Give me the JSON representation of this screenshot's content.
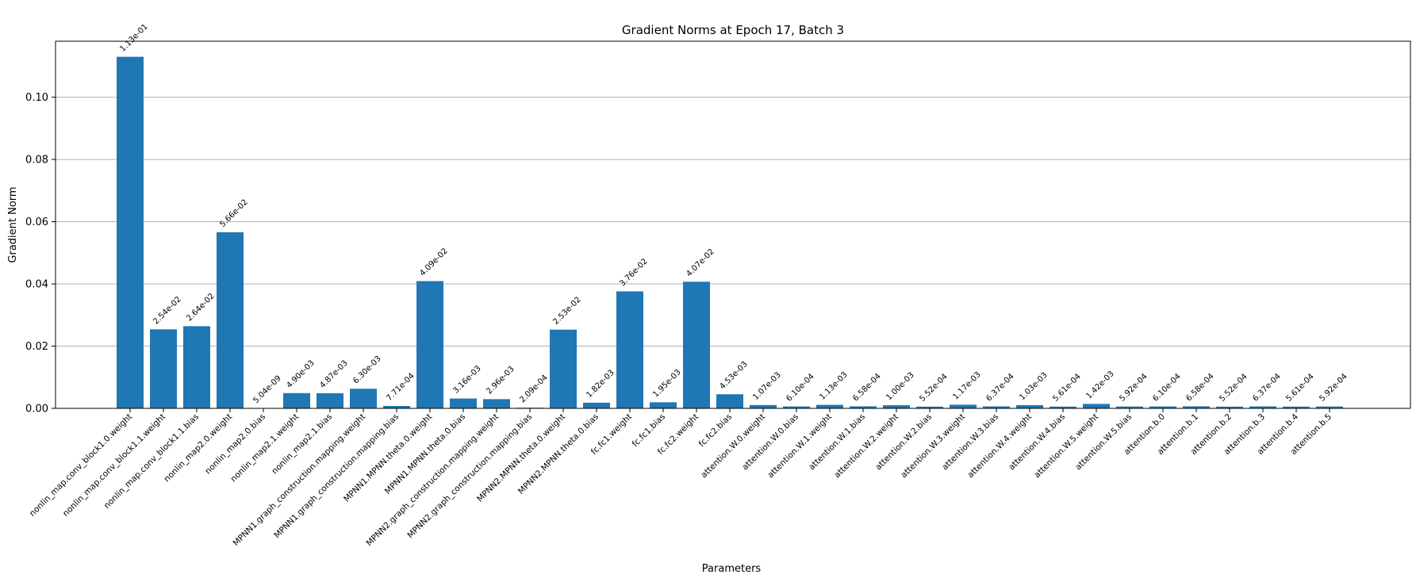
{
  "chart_data": {
    "type": "bar",
    "title": "Gradient Norms at Epoch 17, Batch 3",
    "xlabel": "Parameters",
    "ylabel": "Gradient Norm",
    "ylim": [
      0,
      0.118
    ],
    "yticks": [
      "0.00",
      "0.02",
      "0.04",
      "0.06",
      "0.08",
      "0.10"
    ],
    "grid": "y",
    "color": "#1f77b4",
    "categories": [
      "nonlin_map.conv_block1.0.weight",
      "nonlin_map.conv_block1.1.weight",
      "nonlin_map.conv_block1.1.bias",
      "nonlin_map2.0.weight",
      "nonlin_map2.0.bias",
      "nonlin_map2.1.weight",
      "nonlin_map2.1.bias",
      "MPNN1.graph_construction.mapping.weight",
      "MPNN1.graph_construction.mapping.bias",
      "MPNN1.MPNN.theta.0.weight",
      "MPNN1.MPNN.theta.0.bias",
      "MPNN2.graph_construction.mapping.weight",
      "MPNN2.graph_construction.mapping.bias",
      "MPNN2.MPNN.theta.0.weight",
      "MPNN2.MPNN.theta.0.bias",
      "fc.fc1.weight",
      "fc.fc1.bias",
      "fc.fc2.weight",
      "fc.fc2.bias",
      "attention.W.0.weight",
      "attention.W.0.bias",
      "attention.W.1.weight",
      "attention.W.1.bias",
      "attention.W.2.weight",
      "attention.W.2.bias",
      "attention.W.3.weight",
      "attention.W.3.bias",
      "attention.W.4.weight",
      "attention.W.4.bias",
      "attention.W.5.weight",
      "attention.W.5.bias",
      "attention.b.0",
      "attention.b.1",
      "attention.b.2",
      "attention.b.3",
      "attention.b.4",
      "attention.b.5"
    ],
    "values": [
      0.113,
      0.0254,
      0.0264,
      0.0566,
      5.04e-09,
      0.0049,
      0.00487,
      0.0063,
      0.000771,
      0.0409,
      0.00316,
      0.00296,
      0.000209,
      0.0253,
      0.00182,
      0.0376,
      0.00195,
      0.0407,
      0.00453,
      0.00107,
      0.00061,
      0.00113,
      0.000658,
      0.001,
      0.000552,
      0.00117,
      0.000637,
      0.00103,
      0.000561,
      0.00142,
      0.000592,
      0.00061,
      0.000658,
      0.000552,
      0.000637,
      0.000561,
      0.000592
    ],
    "value_labels": [
      "1.13e-01",
      "2.54e-02",
      "2.64e-02",
      "5.66e-02",
      "5.04e-09",
      "4.90e-03",
      "4.87e-03",
      "6.30e-03",
      "7.71e-04",
      "4.09e-02",
      "3.16e-03",
      "2.96e-03",
      "2.09e-04",
      "2.53e-02",
      "1.82e-03",
      "3.76e-02",
      "1.95e-03",
      "4.07e-02",
      "4.53e-03",
      "1.07e-03",
      "6.10e-04",
      "1.13e-03",
      "6.58e-04",
      "1.00e-03",
      "5.52e-04",
      "1.17e-03",
      "6.37e-04",
      "1.03e-03",
      "5.61e-04",
      "1.42e-03",
      "5.92e-04",
      "6.10e-04",
      "6.58e-04",
      "5.52e-04",
      "6.37e-04",
      "5.61e-04",
      "5.92e-04"
    ]
  }
}
